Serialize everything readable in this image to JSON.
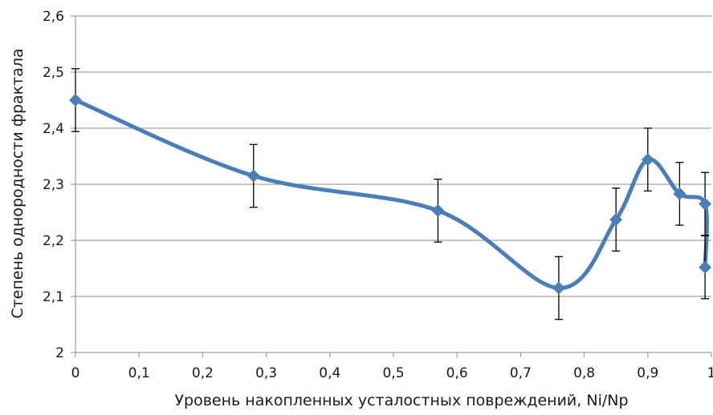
{
  "chart_data": {
    "type": "line",
    "xlabel": "Уровень накопленных усталостных повреждений, Ni/Np",
    "ylabel": "Степень однородности фрактала",
    "xlim": [
      0,
      1
    ],
    "ylim": [
      2,
      2.6
    ],
    "x_ticks": [
      "0",
      "0,1",
      "0,2",
      "0,3",
      "0,4",
      "0,5",
      "0,6",
      "0,7",
      "0,8",
      "0,9",
      "1"
    ],
    "y_ticks": [
      "2",
      "2,1",
      "2,2",
      "2,3",
      "2,4",
      "2,5",
      "2,6"
    ],
    "grid": "horizontal",
    "line_color": "#4a7ebb",
    "series": [
      {
        "points": [
          {
            "x": 0.0,
            "y": 2.45,
            "err": 0.056
          },
          {
            "x": 0.28,
            "y": 2.315,
            "err": 0.056
          },
          {
            "x": 0.57,
            "y": 2.253,
            "err": 0.056
          },
          {
            "x": 0.76,
            "y": 2.115,
            "err": 0.056
          },
          {
            "x": 0.85,
            "y": 2.237,
            "err": 0.056
          },
          {
            "x": 0.9,
            "y": 2.344,
            "err": 0.056
          },
          {
            "x": 0.95,
            "y": 2.283,
            "err": 0.056
          },
          {
            "x": 0.99,
            "y": 2.265,
            "err": 0.056
          },
          {
            "x": 0.99,
            "y": 2.152,
            "err": 0.056
          }
        ]
      }
    ]
  }
}
